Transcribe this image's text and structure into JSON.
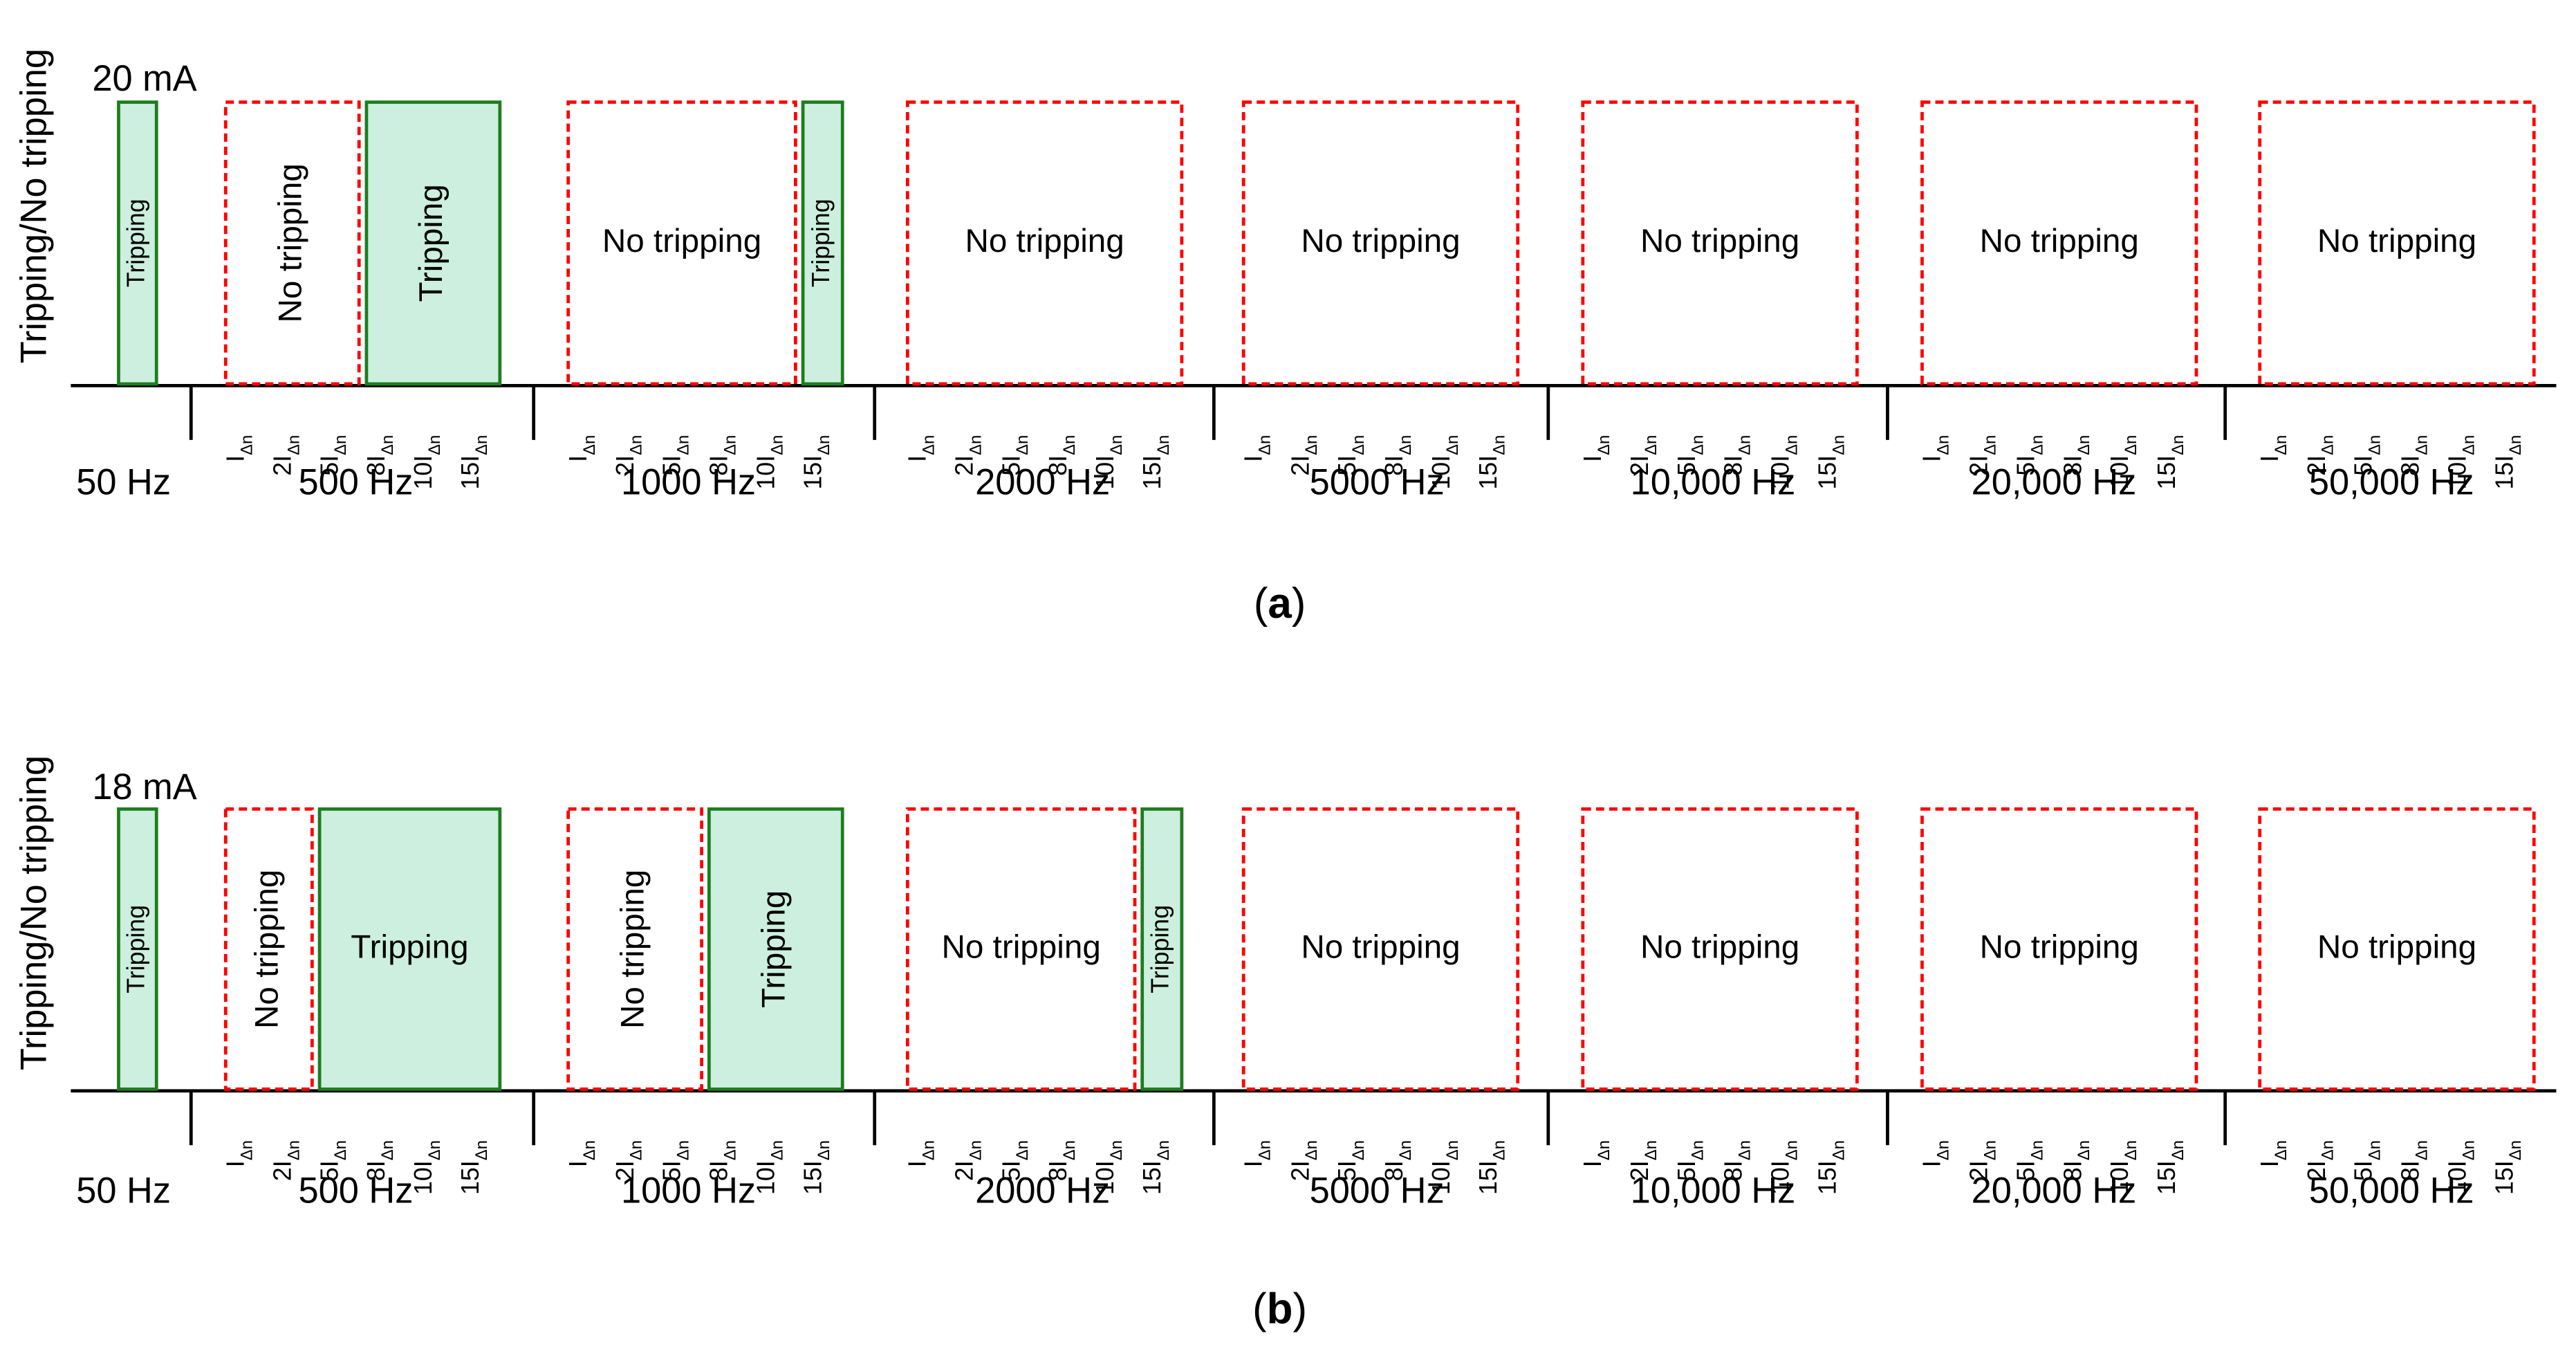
{
  "colors": {
    "tripping_fill": "#ccefdf",
    "tripping_stroke": "#1e7d1e",
    "no_tripping_stroke": "#ff0000",
    "axis": "#000000"
  },
  "tick_labels": [
    "I",
    "2I",
    "5I",
    "8I",
    "10I",
    "15I"
  ],
  "tick_subscript": "Δn",
  "chart_data": [
    {
      "type": "bar",
      "panel": "a",
      "caption_letter": "a",
      "threshold_label": "20 mA",
      "ylabel": "Tripping/No tripping",
      "frequencies": [
        "50 Hz",
        "500 Hz",
        "1000 Hz",
        "2000 Hz",
        "5000 Hz",
        "10,000 Hz",
        "20,000 Hz",
        "50,000 Hz"
      ],
      "multiples": [
        "IΔn",
        "2IΔn",
        "5IΔn",
        "8IΔn",
        "10IΔn",
        "15IΔn"
      ],
      "regions": [
        {
          "freq": "50 Hz",
          "from": 0,
          "to": 0,
          "outcome": "Tripping",
          "text": "Tripping",
          "vertical": true
        },
        {
          "freq": "500 Hz",
          "from": 0,
          "to": 2,
          "outcome": "No tripping",
          "text": "No tripping",
          "vertical": true
        },
        {
          "freq": "500 Hz",
          "from": 3,
          "to": 5,
          "outcome": "Tripping",
          "text": "Tripping",
          "vertical": true
        },
        {
          "freq": "1000 Hz",
          "from": 0,
          "to": 4,
          "outcome": "No tripping",
          "text": "No tripping",
          "vertical": false
        },
        {
          "freq": "1000 Hz",
          "from": 5,
          "to": 5,
          "outcome": "Tripping",
          "text": "Tripping",
          "vertical": true
        },
        {
          "freq": "2000 Hz",
          "from": 0,
          "to": 5,
          "outcome": "No tripping",
          "text": "No tripping",
          "vertical": false
        },
        {
          "freq": "5000 Hz",
          "from": 0,
          "to": 5,
          "outcome": "No tripping",
          "text": "No tripping",
          "vertical": false
        },
        {
          "freq": "10,000 Hz",
          "from": 0,
          "to": 5,
          "outcome": "No tripping",
          "text": "No tripping",
          "vertical": false
        },
        {
          "freq": "20,000 Hz",
          "from": 0,
          "to": 5,
          "outcome": "No tripping",
          "text": "No tripping",
          "vertical": false
        },
        {
          "freq": "50,000 Hz",
          "from": 0,
          "to": 5,
          "outcome": "No tripping",
          "text": "No tripping",
          "vertical": false
        }
      ]
    },
    {
      "type": "bar",
      "panel": "b",
      "caption_letter": "b",
      "threshold_label": "18 mA",
      "ylabel": "Tripping/No tripping",
      "frequencies": [
        "50 Hz",
        "500 Hz",
        "1000 Hz",
        "2000 Hz",
        "5000 Hz",
        "10,000 Hz",
        "20,000 Hz",
        "50,000 Hz"
      ],
      "multiples": [
        "IΔn",
        "2IΔn",
        "5IΔn",
        "8IΔn",
        "10IΔn",
        "15IΔn"
      ],
      "regions": [
        {
          "freq": "50 Hz",
          "from": 0,
          "to": 0,
          "outcome": "Tripping",
          "text": "Tripping",
          "vertical": true
        },
        {
          "freq": "500 Hz",
          "from": 0,
          "to": 1,
          "outcome": "No tripping",
          "text": "No tripping",
          "vertical": true
        },
        {
          "freq": "500 Hz",
          "from": 2,
          "to": 5,
          "outcome": "Tripping",
          "text": "Tripping",
          "vertical": false
        },
        {
          "freq": "1000 Hz",
          "from": 0,
          "to": 2,
          "outcome": "No tripping",
          "text": "No tripping",
          "vertical": true
        },
        {
          "freq": "1000 Hz",
          "from": 3,
          "to": 5,
          "outcome": "Tripping",
          "text": "Tripping",
          "vertical": true
        },
        {
          "freq": "2000 Hz",
          "from": 0,
          "to": 4,
          "outcome": "No tripping",
          "text": "No tripping",
          "vertical": false
        },
        {
          "freq": "2000 Hz",
          "from": 5,
          "to": 5,
          "outcome": "Tripping",
          "text": "Tripping",
          "vertical": true
        },
        {
          "freq": "5000 Hz",
          "from": 0,
          "to": 5,
          "outcome": "No tripping",
          "text": "No tripping",
          "vertical": false
        },
        {
          "freq": "10,000 Hz",
          "from": 0,
          "to": 5,
          "outcome": "No tripping",
          "text": "No tripping",
          "vertical": false
        },
        {
          "freq": "20,000 Hz",
          "from": 0,
          "to": 5,
          "outcome": "No tripping",
          "text": "No tripping",
          "vertical": false
        },
        {
          "freq": "50,000 Hz",
          "from": 0,
          "to": 5,
          "outcome": "No tripping",
          "text": "No tripping",
          "vertical": false
        }
      ]
    }
  ]
}
